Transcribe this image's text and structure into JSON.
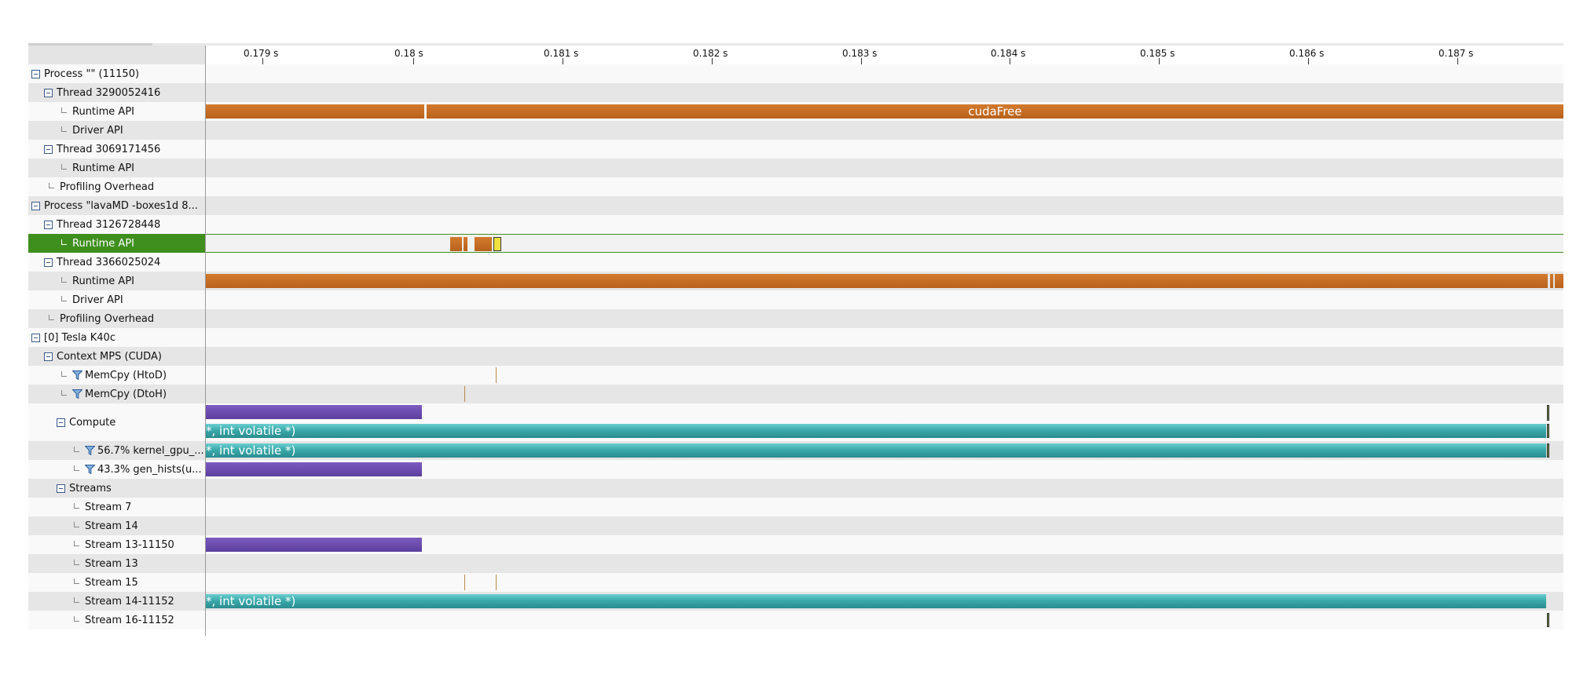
{
  "ruler": {
    "ticks": [
      "0.179 s",
      "0.18 s",
      "0.181 s",
      "0.182 s",
      "0.183 s",
      "0.184 s",
      "0.185 s",
      "0.186 s",
      "0.187 s"
    ]
  },
  "rows": [
    {
      "label": "Process \"\" (11150)",
      "indent": 0,
      "kind": "toggle"
    },
    {
      "label": "Thread 3290052416",
      "indent": 1,
      "kind": "toggle"
    },
    {
      "label": "Runtime API",
      "indent": 2,
      "kind": "leaf"
    },
    {
      "label": "Driver API",
      "indent": 2,
      "kind": "leaf"
    },
    {
      "label": "Thread 3069171456",
      "indent": 1,
      "kind": "toggle"
    },
    {
      "label": "Runtime API",
      "indent": 2,
      "kind": "leaf"
    },
    {
      "label": "Profiling Overhead",
      "indent": 1,
      "kind": "leaf"
    },
    {
      "label": "Process \"lavaMD -boxes1d 8...",
      "indent": 0,
      "kind": "toggle"
    },
    {
      "label": "Thread 3126728448",
      "indent": 1,
      "kind": "toggle"
    },
    {
      "label": "Runtime API",
      "indent": 2,
      "kind": "leaf",
      "selected": true
    },
    {
      "label": "Thread 3366025024",
      "indent": 1,
      "kind": "toggle"
    },
    {
      "label": "Runtime API",
      "indent": 2,
      "kind": "leaf"
    },
    {
      "label": "Driver API",
      "indent": 2,
      "kind": "leaf"
    },
    {
      "label": "Profiling Overhead",
      "indent": 1,
      "kind": "leaf"
    },
    {
      "label": "[0] Tesla K40c",
      "indent": 0,
      "kind": "toggle"
    },
    {
      "label": "Context MPS (CUDA)",
      "indent": 1,
      "kind": "toggle"
    },
    {
      "label": "MemCpy (HtoD)",
      "indent": 2,
      "kind": "filter"
    },
    {
      "label": "MemCpy (DtoH)",
      "indent": 2,
      "kind": "filter"
    },
    {
      "label": "Compute",
      "indent": 2,
      "kind": "toggle",
      "tall": true
    },
    {
      "label": "56.7% kernel_gpu_...",
      "indent": 3,
      "kind": "filter"
    },
    {
      "label": "43.3% gen_hists(u...",
      "indent": 3,
      "kind": "filter"
    },
    {
      "label": "Streams",
      "indent": 2,
      "kind": "toggle"
    },
    {
      "label": "Stream 7",
      "indent": 3,
      "kind": "leaf"
    },
    {
      "label": "Stream 14",
      "indent": 3,
      "kind": "leaf"
    },
    {
      "label": "Stream 13-11150",
      "indent": 3,
      "kind": "leaf"
    },
    {
      "label": "Stream 13",
      "indent": 3,
      "kind": "leaf"
    },
    {
      "label": "Stream 15",
      "indent": 3,
      "kind": "leaf"
    },
    {
      "label": "Stream 14-11152",
      "indent": 3,
      "kind": "leaf"
    },
    {
      "label": "Stream 16-11152",
      "indent": 3,
      "kind": "leaf"
    }
  ],
  "bars": {
    "runtime_cudafree_label": "cudaFree",
    "kernel_label": "*, int volatile *)"
  },
  "colors": {
    "runtime_api": "#c86e24",
    "gen_hists": "#6a4bb0",
    "kernel_gpu": "#3aa9aa",
    "selected": "#3f8f1f"
  }
}
